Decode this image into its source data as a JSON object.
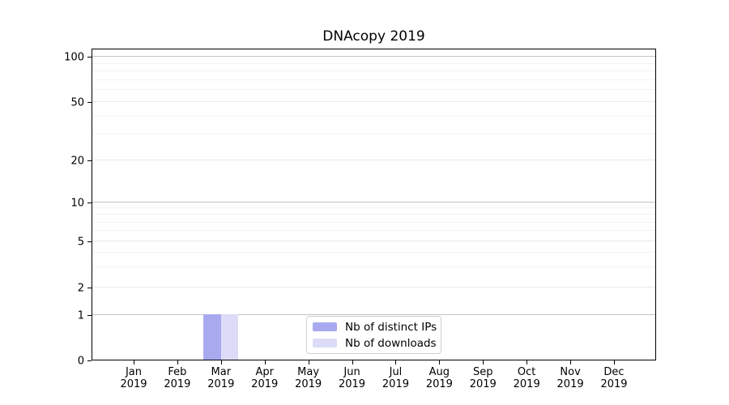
{
  "title": "DNAcopy 2019",
  "chart_data": {
    "type": "bar",
    "title": "DNAcopy 2019",
    "categories": [
      "Jan 2019",
      "Feb 2019",
      "Mar 2019",
      "Apr 2019",
      "May 2019",
      "Jun 2019",
      "Jul 2019",
      "Aug 2019",
      "Sep 2019",
      "Oct 2019",
      "Nov 2019",
      "Dec 2019"
    ],
    "series": [
      {
        "name": "Nb of distinct IPs",
        "color": "#a9a9f0",
        "values": [
          0,
          0,
          1,
          0,
          0,
          0,
          0,
          0,
          0,
          0,
          0,
          0
        ]
      },
      {
        "name": "Nb of downloads",
        "color": "#dcdcf8",
        "values": [
          0,
          0,
          1,
          0,
          0,
          0,
          0,
          0,
          0,
          0,
          0,
          0
        ]
      }
    ],
    "yscale": "log-like with 0 baseline",
    "yticks": [
      0,
      1,
      2,
      5,
      10,
      20,
      50,
      100
    ],
    "minor_yticks": [
      3,
      4,
      6,
      7,
      8,
      9,
      30,
      40,
      60,
      70,
      80,
      90
    ],
    "ylim": [
      0,
      110
    ],
    "xlabel": "",
    "ylabel": "",
    "grid": true,
    "legend_position": "bottom-center-inside"
  },
  "colors": {
    "grid_decade": "#c4c4c4",
    "grid_labeled": "#e9e9e9",
    "grid_minor": "#f3f3f3",
    "axis": "#000000",
    "background": "#ffffff"
  }
}
